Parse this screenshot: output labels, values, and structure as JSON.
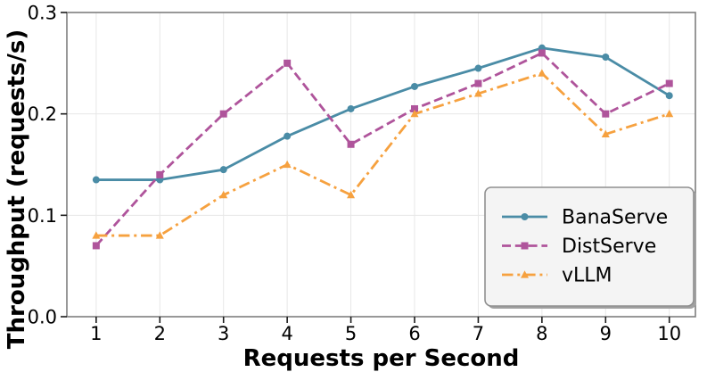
{
  "chart_data": {
    "type": "line",
    "title": "",
    "xlabel": "Requests per Second",
    "ylabel": "Throughput (requests/s)",
    "x": [
      1,
      2,
      3,
      4,
      5,
      6,
      7,
      8,
      9,
      10
    ],
    "xtick_labels": [
      "1",
      "2",
      "3",
      "4",
      "5",
      "6",
      "7",
      "8",
      "9",
      "10"
    ],
    "ytick_values": [
      0.0,
      0.1,
      0.2,
      0.3
    ],
    "ytick_labels": [
      "0.0",
      "0.1",
      "0.2",
      "0.3"
    ],
    "xlim": [
      0.54,
      10.41
    ],
    "ylim": [
      0.0,
      0.3
    ],
    "grid": true,
    "grid_color": "#e7e7e7",
    "spine_color": "#7f7f7f",
    "tick_color": "#1a1a1a",
    "legend": {
      "position": "lower-right",
      "shadow": true,
      "fill": "#f4f4f4",
      "border": "#8f8f8f",
      "shadow_color": "#a0a0a0",
      "entries": [
        "BanaServe",
        "DistServe",
        "vLLM"
      ]
    },
    "series": [
      {
        "name": "BanaServe",
        "color": "#4a8ca6",
        "linestyle": "solid",
        "marker": "circle",
        "values": [
          0.135,
          0.135,
          0.145,
          0.178,
          0.205,
          0.227,
          0.245,
          0.265,
          0.256,
          0.218
        ]
      },
      {
        "name": "DistServe",
        "color": "#af549b",
        "linestyle": "dashed",
        "marker": "square",
        "values": [
          0.07,
          0.14,
          0.2,
          0.25,
          0.17,
          0.205,
          0.23,
          0.26,
          0.2,
          0.23
        ]
      },
      {
        "name": "vLLM",
        "color": "#f6a13f",
        "linestyle": "dashdot",
        "marker": "triangle",
        "values": [
          0.08,
          0.08,
          0.12,
          0.15,
          0.12,
          0.2,
          0.22,
          0.24,
          0.18,
          0.2
        ]
      }
    ]
  }
}
